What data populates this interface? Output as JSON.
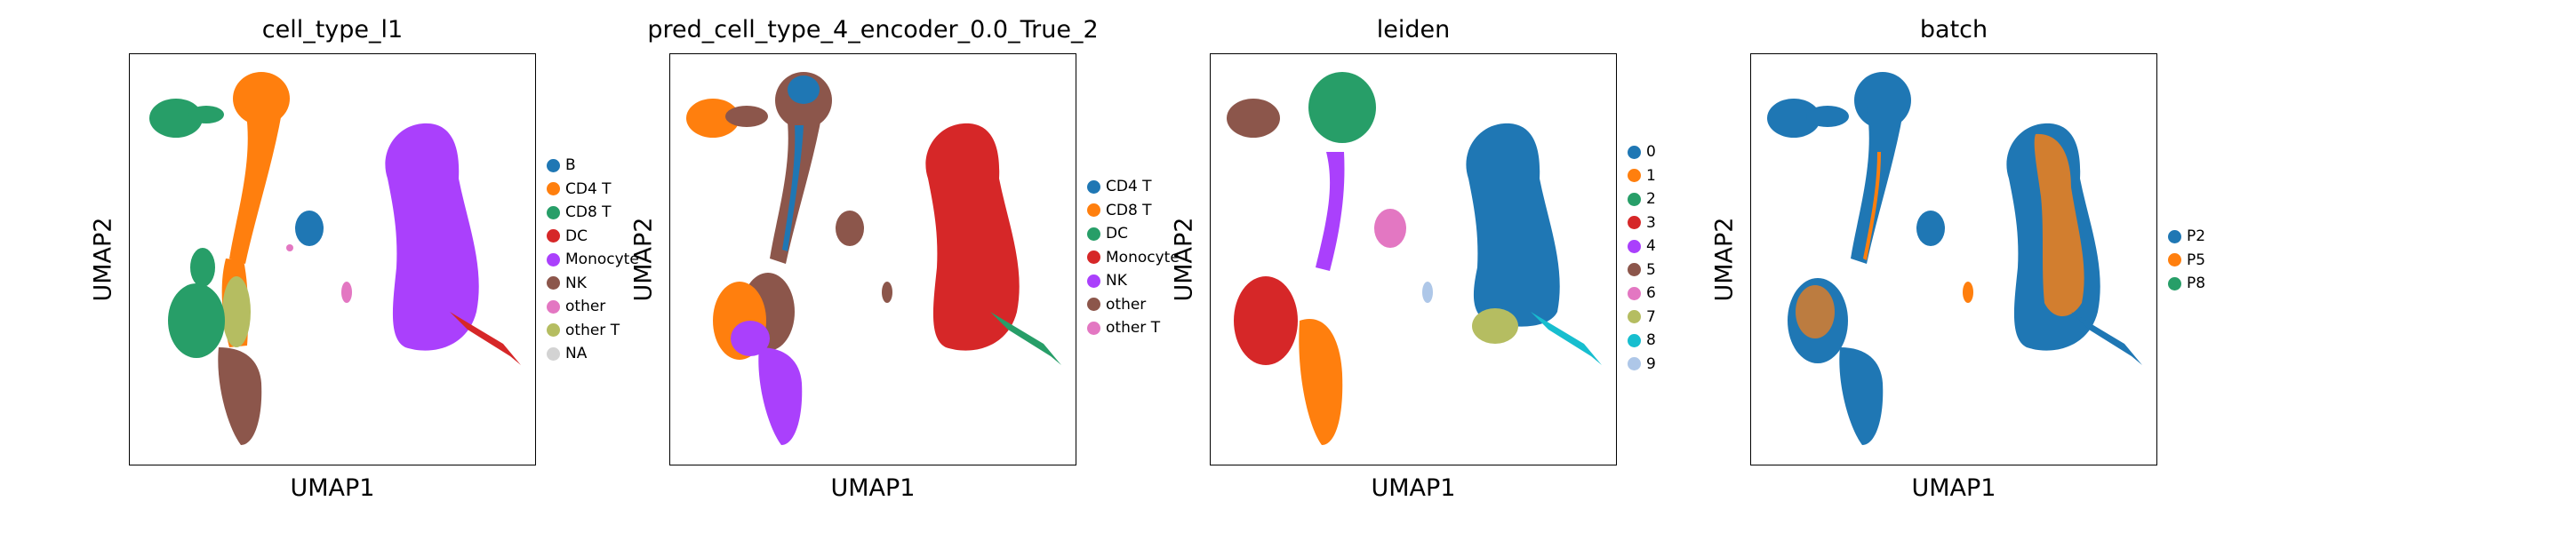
{
  "chart_data": [
    {
      "type": "scatter",
      "title": "cell_type_l1",
      "xlabel": "UMAP1",
      "ylabel": "UMAP2",
      "grid": false,
      "ticks": false,
      "legend_position": "right",
      "legend": [
        {
          "label": "B",
          "color": "#1f77b4"
        },
        {
          "label": "CD4 T",
          "color": "#ff7f0e"
        },
        {
          "label": "CD8 T",
          "color": "#279e68"
        },
        {
          "label": "DC",
          "color": "#d62728"
        },
        {
          "label": "Monocyte",
          "color": "#aa40fc"
        },
        {
          "label": "NK",
          "color": "#8c564b"
        },
        {
          "label": "other",
          "color": "#e377c2"
        },
        {
          "label": "other T",
          "color": "#b5bd61"
        },
        {
          "label": "NA",
          "color": "#d3d3d3"
        }
      ]
    },
    {
      "type": "scatter",
      "title": "pred_cell_type_4_encoder_0.0_True_2",
      "xlabel": "UMAP1",
      "ylabel": "UMAP2",
      "grid": false,
      "ticks": false,
      "legend_position": "right",
      "legend": [
        {
          "label": "CD4 T",
          "color": "#1f77b4"
        },
        {
          "label": "CD8 T",
          "color": "#ff7f0e"
        },
        {
          "label": "DC",
          "color": "#279e68"
        },
        {
          "label": "Monocyte",
          "color": "#d62728"
        },
        {
          "label": "NK",
          "color": "#aa40fc"
        },
        {
          "label": "other",
          "color": "#8c564b"
        },
        {
          "label": "other T",
          "color": "#e377c2"
        }
      ]
    },
    {
      "type": "scatter",
      "title": "leiden",
      "xlabel": "UMAP1",
      "ylabel": "UMAP2",
      "grid": false,
      "ticks": false,
      "legend_position": "right",
      "legend": [
        {
          "label": "0",
          "color": "#1f77b4"
        },
        {
          "label": "1",
          "color": "#ff7f0e"
        },
        {
          "label": "2",
          "color": "#279e68"
        },
        {
          "label": "3",
          "color": "#d62728"
        },
        {
          "label": "4",
          "color": "#aa40fc"
        },
        {
          "label": "5",
          "color": "#8c564b"
        },
        {
          "label": "6",
          "color": "#e377c2"
        },
        {
          "label": "7",
          "color": "#b5bd61"
        },
        {
          "label": "8",
          "color": "#17becf"
        },
        {
          "label": "9",
          "color": "#aec7e8"
        }
      ]
    },
    {
      "type": "scatter",
      "title": "batch",
      "xlabel": "UMAP1",
      "ylabel": "UMAP2",
      "grid": false,
      "ticks": false,
      "legend_position": "right",
      "legend": [
        {
          "label": "P2",
          "color": "#1f77b4"
        },
        {
          "label": "P5",
          "color": "#ff7f0e"
        },
        {
          "label": "P8",
          "color": "#279e68"
        }
      ]
    }
  ]
}
